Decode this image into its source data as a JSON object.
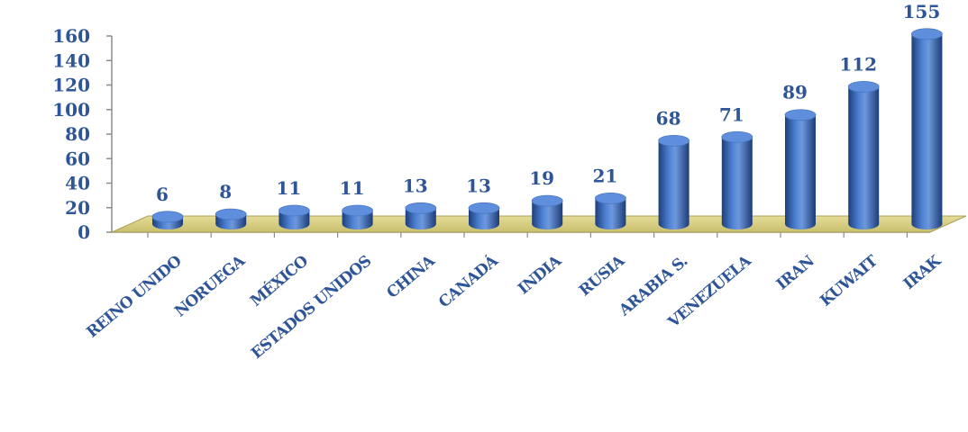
{
  "chart_data": {
    "type": "bar",
    "categories": [
      "REINO UNIDO",
      "NORUEGA",
      "MÉXICO",
      "ESTADOS UNIDOS",
      "CHINA",
      "CANADÁ",
      "INDIA",
      "RUSIA",
      "ARABIA S.",
      "VENEZUELA",
      "IRAN",
      "KUWAIT",
      "IRAK"
    ],
    "values": [
      6,
      8,
      11,
      11,
      13,
      13,
      19,
      21,
      68,
      71,
      89,
      112,
      155
    ],
    "ylim": [
      0,
      160
    ],
    "yticks": [
      "0",
      "20",
      "40",
      "60",
      "80",
      "100",
      "120",
      "140",
      "160"
    ],
    "data_labels": [
      "6",
      "8",
      "11",
      "11",
      "13",
      "13",
      "19",
      "21",
      "68",
      "71",
      "89",
      "112",
      "155"
    ],
    "grid": false,
    "legend": "none",
    "bar_style": "3d-cylinder"
  },
  "colors": {
    "bar": "#3a6cc0",
    "bar_dark": "#1d3f7a",
    "bar_light": "#7ea6e6",
    "floor": "#d8cf86",
    "text": "#2e5597"
  }
}
